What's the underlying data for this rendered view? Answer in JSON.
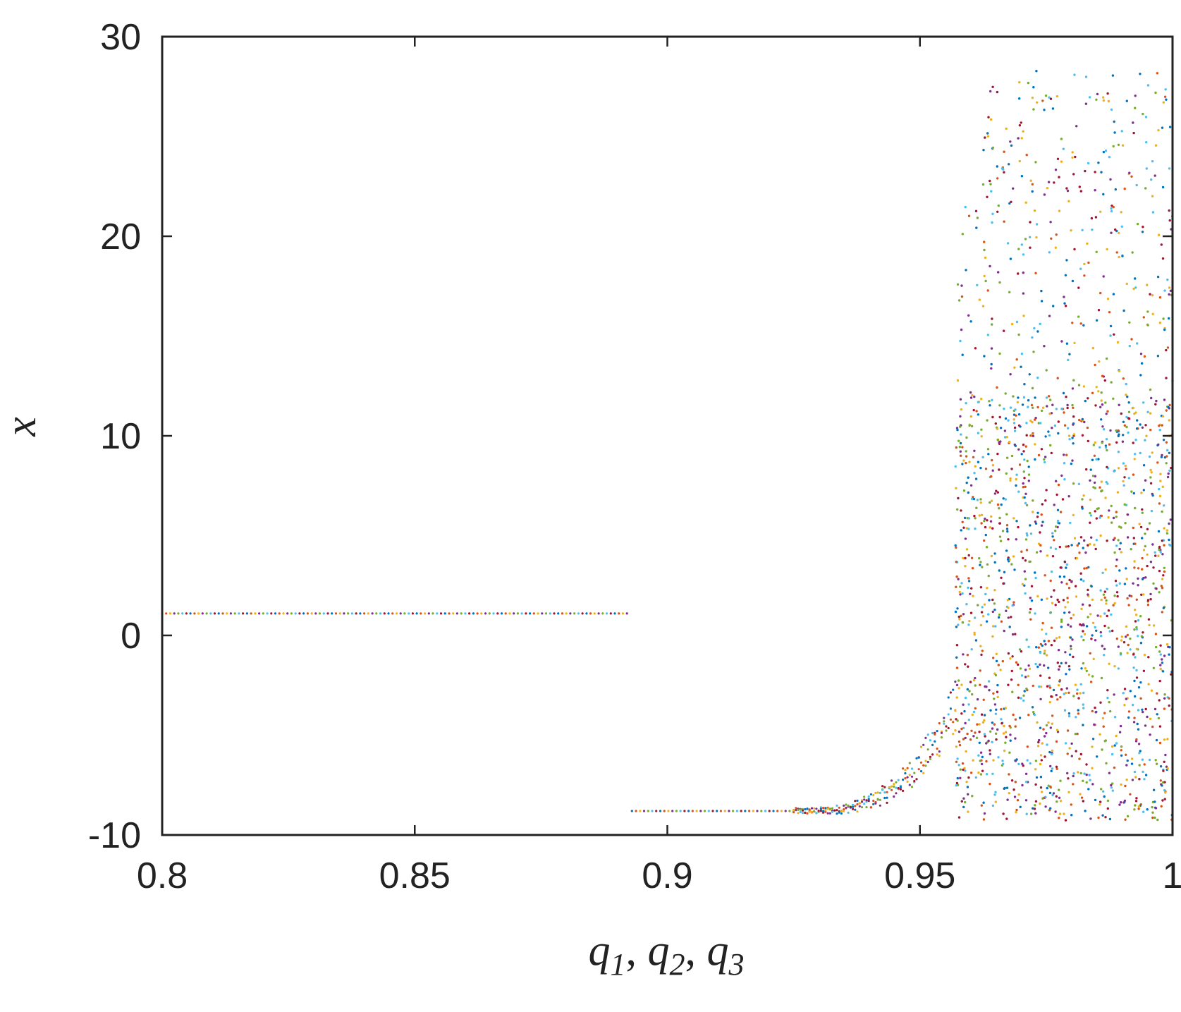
{
  "chart_data": {
    "type": "scatter",
    "title": "",
    "xlabel": "",
    "ylabel": "x",
    "xlabel_parts": [
      "q",
      "1",
      ", ",
      "q",
      "2",
      ", ",
      "q",
      "3"
    ],
    "xlim": [
      0.8,
      1.0
    ],
    "ylim": [
      -10,
      30
    ],
    "xticks": [
      0.8,
      0.85,
      0.9,
      0.95,
      1.0
    ],
    "xtick_labels": [
      "0.8",
      "0.85",
      "0.9",
      "0.95",
      "1"
    ],
    "yticks": [
      -10,
      0,
      10,
      20,
      30
    ],
    "ytick_labels": [
      "-10",
      "0",
      "10",
      "20",
      "30"
    ],
    "grid": false,
    "legend": "none",
    "colors": [
      "#0072BD",
      "#D95319",
      "#EDB120",
      "#7E2F8E",
      "#77AC30",
      "#4DBEEE",
      "#A2142F"
    ],
    "regimes": [
      {
        "kind": "fixed-point",
        "x_range": [
          0.8,
          0.892
        ],
        "y": 1.1
      },
      {
        "kind": "fixed-point",
        "x_range": [
          0.893,
          0.925
        ],
        "y": -8.8
      },
      {
        "kind": "transition",
        "x_range": [
          0.925,
          0.957
        ],
        "y_start": -8.8,
        "y_end": -3.5
      },
      {
        "kind": "chaotic",
        "x_range": [
          0.957,
          1.0
        ],
        "y_range": [
          -9.3,
          28.3
        ]
      }
    ]
  }
}
